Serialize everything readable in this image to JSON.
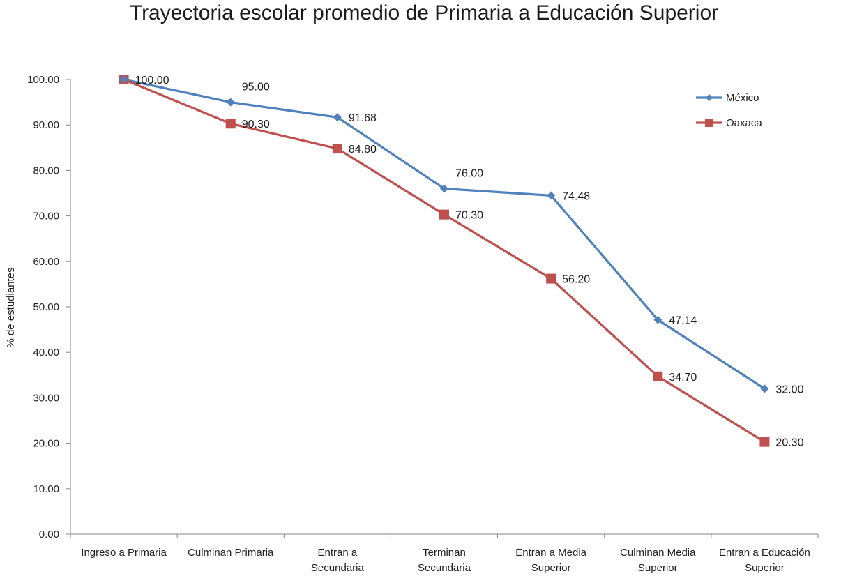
{
  "chart_data": {
    "type": "line",
    "title": "Trayectoria escolar promedio de Primaria a Educación Superior",
    "xlabel": "",
    "ylabel": "% de estudiantes",
    "ylim": [
      0,
      100
    ],
    "yticks": [
      "0.00",
      "10.00",
      "20.00",
      "30.00",
      "40.00",
      "50.00",
      "60.00",
      "70.00",
      "80.00",
      "90.00",
      "100.00"
    ],
    "grid": false,
    "legend_position": "top-right",
    "categories": [
      [
        "Ingreso a Primaria"
      ],
      [
        "Culminan Primaria"
      ],
      [
        "Entran a",
        "Secundaria"
      ],
      [
        "Terminan",
        "Secundaria"
      ],
      [
        "Entran a Media",
        "Superior"
      ],
      [
        "Culminan Media",
        "Superior"
      ],
      [
        "Entran a Educación",
        "Superior"
      ]
    ],
    "series": [
      {
        "name": "México",
        "color": "#4f81bd",
        "marker": "diamond",
        "values": [
          100.0,
          95.0,
          91.68,
          76.0,
          74.48,
          47.14,
          32.0
        ],
        "labels": [
          "100.00",
          "95.00",
          "91.68",
          "76.00",
          "74.48",
          "47.14",
          "32.00"
        ]
      },
      {
        "name": "Oaxaca",
        "color": "#c0504d",
        "marker": "square",
        "values": [
          100.0,
          90.3,
          84.8,
          70.3,
          56.2,
          34.7,
          20.3
        ],
        "labels": [
          "100.00",
          "90.30",
          "84.80",
          "70.30",
          "56.20",
          "34.70",
          "20.30"
        ]
      }
    ]
  }
}
